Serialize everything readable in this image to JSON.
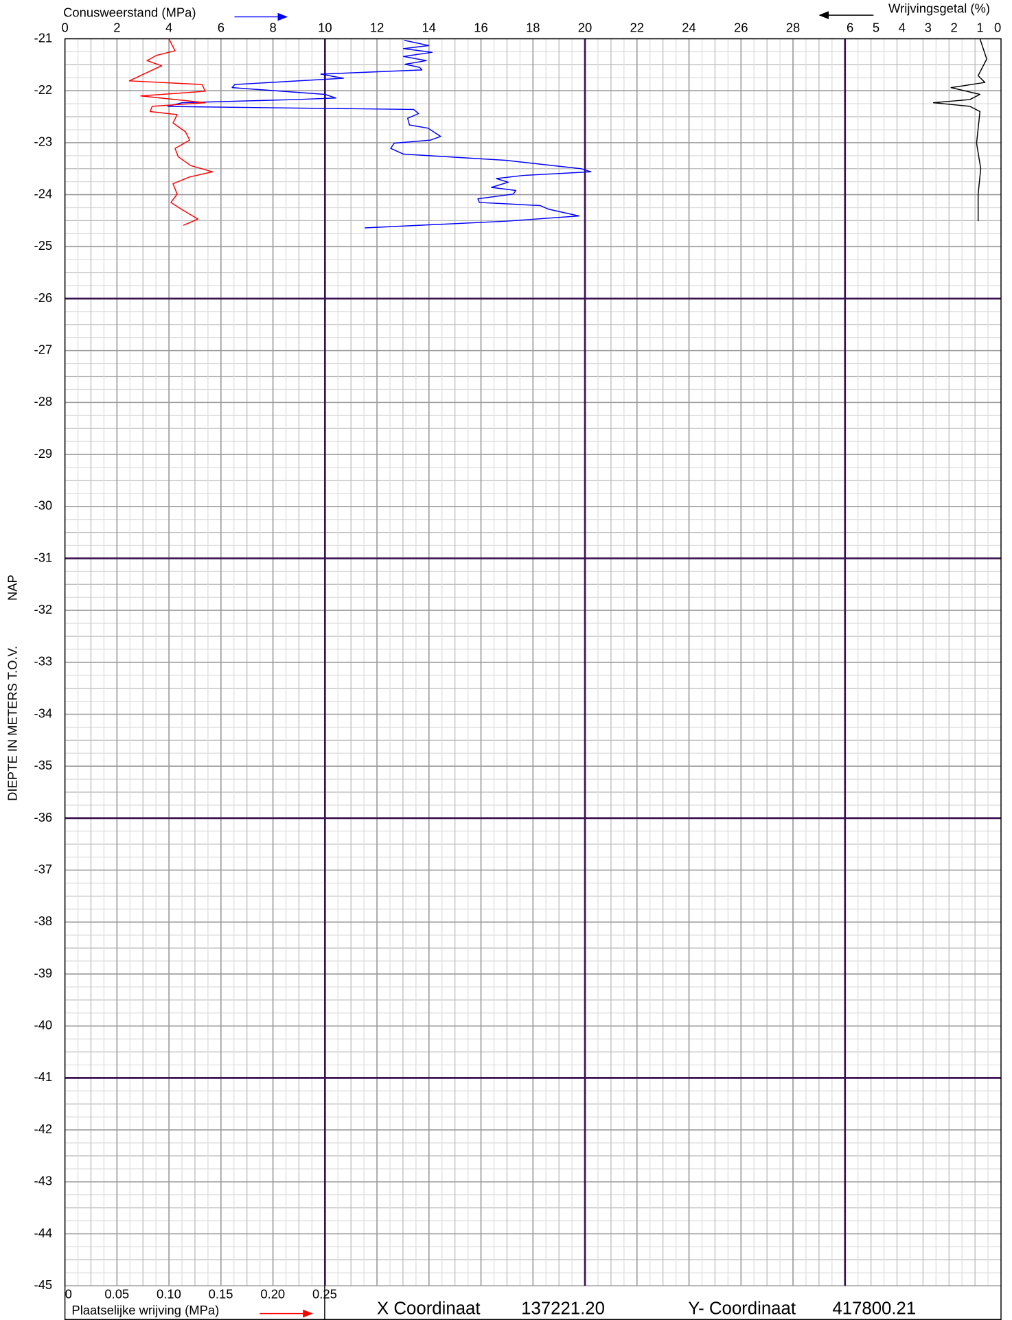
{
  "chart_data": {
    "type": "line",
    "ylabel": "DIEPTE IN METERS T.O.V.",
    "ylabel_ref": "NAP",
    "ylim": [
      -21,
      -45
    ],
    "yticks": [
      -21,
      -22,
      -23,
      -24,
      -25,
      -26,
      -27,
      -28,
      -29,
      -30,
      -31,
      -32,
      -33,
      -34,
      -35,
      -36,
      -37,
      -38,
      -39,
      -40,
      -41,
      -42,
      -43,
      -44,
      -45
    ],
    "xlim": [
      0,
      36
    ],
    "xticks": [
      0,
      2,
      4,
      6,
      8,
      10,
      12,
      14,
      16,
      18,
      20,
      22,
      24,
      26,
      28
    ],
    "x2lim": [
      0,
      0.25
    ],
    "x2ticks": [
      0,
      0.05,
      {
        "value": 0.1,
        "label": "0.10"
      },
      0.15,
      {
        "value": 0.2,
        "label": "0.20"
      },
      0.25
    ],
    "x3lim": [
      36,
      0
    ],
    "x3ticks": [
      6,
      5,
      4,
      3,
      2,
      1,
      0
    ],
    "grid": true,
    "series": [
      {
        "name": "Conusweerstand (MPa)",
        "color": "#0000ff",
        "axis": "x",
        "values": [
          13.05,
          13.99,
          13.02,
          14.12,
          13.02,
          13.9,
          13.08,
          13.64,
          13.73,
          9.84,
          10.71,
          6.53,
          6.43,
          10.0,
          10.42,
          8.86,
          4.51,
          3.96,
          5.03,
          13.41,
          13.6,
          13.18,
          13.25,
          13.96,
          14.45,
          14.06,
          12.66,
          12.53,
          13.02,
          16.98,
          19.84,
          20.23,
          17.63,
          16.59,
          17.05,
          16.4,
          17.34,
          17.24,
          15.88,
          15.94,
          18.28,
          18.6,
          19.77,
          16.98,
          11.53
        ],
        "depth": [
          -21.03,
          -21.13,
          -21.19,
          -21.26,
          -21.34,
          -21.42,
          -21.49,
          -21.55,
          -21.6,
          -21.68,
          -21.76,
          -21.88,
          -21.94,
          -22.07,
          -22.14,
          -22.17,
          -22.23,
          -22.3,
          -22.31,
          -22.36,
          -22.44,
          -22.53,
          -22.66,
          -22.72,
          -22.88,
          -22.95,
          -23.01,
          -23.11,
          -23.22,
          -23.34,
          -23.5,
          -23.56,
          -23.63,
          -23.69,
          -23.76,
          -23.86,
          -23.92,
          -23.99,
          -24.08,
          -24.15,
          -24.21,
          -24.28,
          -24.41,
          -24.51,
          -24.64
        ]
      },
      {
        "name": "Plaatselijke wrijving (MPa)",
        "color": "#ff0000",
        "axis": "x2",
        "values": [
          0.1,
          0.106,
          0.088,
          0.079,
          0.093,
          0.079,
          0.062,
          0.132,
          0.135,
          0.073,
          0.135,
          0.084,
          0.082,
          0.108,
          0.104,
          0.116,
          0.12,
          0.106,
          0.109,
          0.121,
          0.142,
          0.12,
          0.104,
          0.108,
          0.102,
          0.112,
          0.128,
          0.114
        ],
        "depth": [
          -21.0,
          -21.23,
          -21.32,
          -21.42,
          -21.52,
          -21.65,
          -21.81,
          -21.88,
          -22.01,
          -22.1,
          -22.23,
          -22.3,
          -22.4,
          -22.46,
          -22.62,
          -22.79,
          -22.95,
          -23.11,
          -23.27,
          -23.44,
          -23.56,
          -23.66,
          -23.79,
          -23.99,
          -24.15,
          -24.28,
          -24.47,
          -24.59
        ]
      },
      {
        "name": "Wrijvingsgetal (%)",
        "color": "#000000",
        "axis": "x3",
        "values": [
          0.81,
          0.55,
          0.88,
          0.62,
          1.92,
          0.81,
          1.2,
          2.6,
          1.2,
          0.81,
          0.94,
          0.78,
          0.88,
          0.88
        ],
        "depth": [
          -21.0,
          -21.39,
          -21.71,
          -21.84,
          -21.94,
          -22.07,
          -22.17,
          -22.23,
          -22.3,
          -22.4,
          -23.01,
          -23.5,
          -23.99,
          -24.51
        ]
      }
    ]
  },
  "coordinates": {
    "x_label": "X Coordinaat",
    "x_value": "137221.20",
    "y_label": "Y- Coordinaat",
    "y_value": "417800.21"
  }
}
